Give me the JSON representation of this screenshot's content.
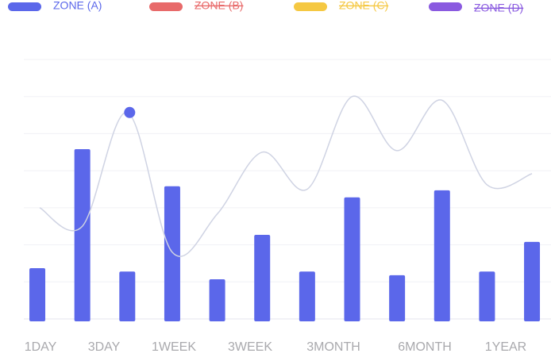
{
  "chart_data": {
    "type": "bar",
    "x_labels": [
      "1DAY",
      "3DAY",
      "1WEEK",
      "3WEEK",
      "3MONTH",
      "6MONTH",
      "1YEAR"
    ],
    "ylim": [
      0,
      7
    ],
    "yticks": [
      0,
      1,
      2,
      3,
      4,
      5,
      6,
      7
    ],
    "grid": true,
    "series": [
      {
        "name": "ZONE (A)",
        "color": "#5b67ea",
        "hidden": false,
        "values": [
          1.37,
          4.58,
          1.28,
          3.58,
          1.07,
          2.27,
          1.28,
          3.28,
          1.18,
          3.47,
          1.28,
          2.08
        ]
      },
      {
        "name": "ZONE (B)",
        "color": "#e86a6a",
        "hidden": true
      },
      {
        "name": "ZONE (C)",
        "color": "#f5c842",
        "hidden": true
      },
      {
        "name": "ZONE (D)",
        "color": "#8a5ae0",
        "hidden": true
      }
    ],
    "line": {
      "color": "#cfd3e3",
      "values": [
        3.0,
        2.5,
        5.57,
        1.8,
        2.83,
        4.5,
        3.5,
        6.0,
        4.54,
        5.9,
        3.62,
        3.92
      ],
      "highlight": 2,
      "highlight_color": "#5b67ea"
    }
  }
}
